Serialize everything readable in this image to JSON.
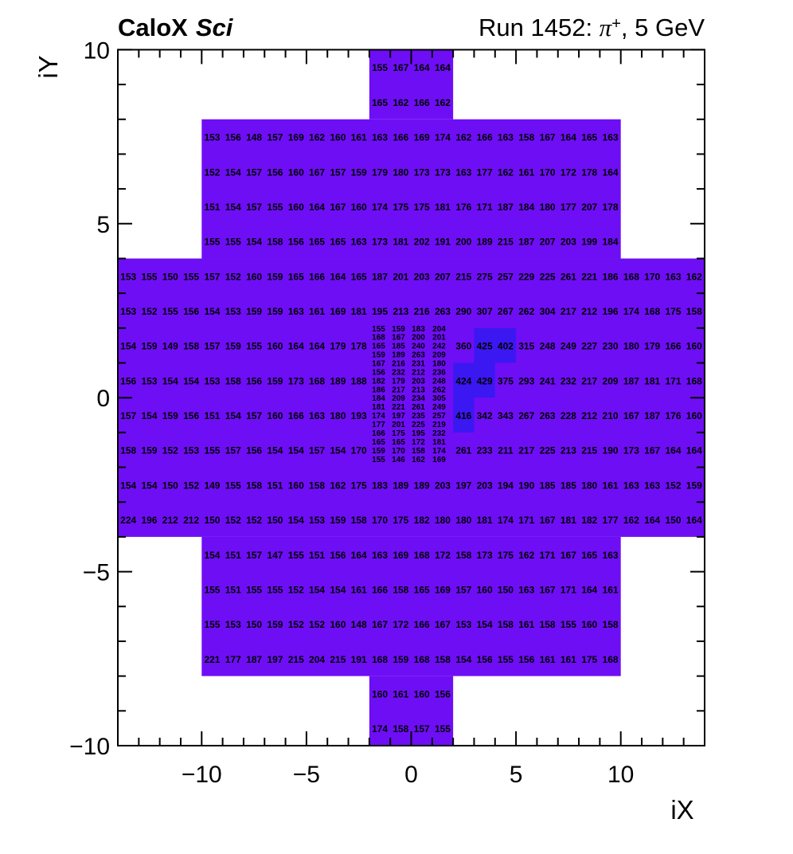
{
  "header": {
    "experiment": "CaloX",
    "detector": "Sci",
    "run_prefix": "Run 1452: ",
    "particle": "π",
    "particle_charge": "+",
    "run_suffix": ", 5 GeV"
  },
  "chart_data": {
    "type": "heatmap",
    "title_left": "CaloX Sci",
    "title_right": "Run 1452: π+, 5 GeV",
    "xlabel": "iX",
    "ylabel": "iY",
    "x_range": [
      -14,
      14
    ],
    "y_range": [
      -10,
      10
    ],
    "x_ticks": [
      -10,
      -5,
      0,
      5,
      10
    ],
    "y_ticks": [
      -10,
      -5,
      0,
      5,
      10
    ],
    "x_tick_labels": [
      "−10",
      "−5",
      "0",
      "5",
      "10"
    ],
    "y_tick_labels": [
      "−10",
      "−5",
      "0",
      "5",
      "10"
    ],
    "minor_tick_step": 1,
    "grid": false,
    "legend": "none",
    "colors": {
      "cell_low": "#6E0EF5",
      "cell_high": "#3B18F2",
      "high_threshold": 400,
      "frame": "#000000",
      "text": "#000000",
      "background": "#ffffff"
    },
    "detector_regions": [
      {
        "y_min": 8,
        "y_max": 10,
        "x_min": -2,
        "x_max": 2
      },
      {
        "y_min": 4,
        "y_max": 8,
        "x_min": -10,
        "x_max": 10
      },
      {
        "y_min": -4,
        "y_max": 4,
        "x_min": -14,
        "x_max": 14
      },
      {
        "y_min": -8,
        "y_max": -4,
        "x_min": -10,
        "x_max": 10
      },
      {
        "y_min": -10,
        "y_max": -8,
        "x_min": -2,
        "x_max": 2
      }
    ],
    "high_cells": [
      {
        "ix": 3.5,
        "iy": 1.5,
        "value": 425
      },
      {
        "ix": 4.5,
        "iy": 1.5,
        "value": 402
      },
      {
        "ix": 2.5,
        "iy": 0.5,
        "value": 424
      },
      {
        "ix": 3.5,
        "iy": 0.5,
        "value": 429
      },
      {
        "ix": 2.5,
        "iy": -0.5,
        "value": 416
      }
    ],
    "coarse_rows": [
      {
        "iy": 9.5,
        "ix_start": -2,
        "values": [
          155,
          167,
          164,
          164
        ]
      },
      {
        "iy": 8.5,
        "ix_start": -2,
        "values": [
          165,
          162,
          166,
          162
        ]
      },
      {
        "iy": 7.5,
        "ix_start": -10,
        "values": [
          153,
          156,
          148,
          157,
          169,
          162,
          160,
          161,
          163,
          166,
          169,
          174,
          162,
          166,
          163,
          158,
          167,
          164,
          165,
          163
        ]
      },
      {
        "iy": 6.5,
        "ix_start": -10,
        "values": [
          152,
          154,
          157,
          156,
          160,
          167,
          157,
          159,
          179,
          180,
          173,
          173,
          163,
          177,
          162,
          161,
          170,
          172,
          178,
          164
        ]
      },
      {
        "iy": 5.5,
        "ix_start": -10,
        "values": [
          151,
          154,
          157,
          155,
          160,
          164,
          167,
          160,
          174,
          175,
          175,
          181,
          176,
          171,
          187,
          184,
          180,
          177,
          207,
          178
        ]
      },
      {
        "iy": 4.5,
        "ix_start": -10,
        "values": [
          155,
          155,
          154,
          158,
          156,
          165,
          165,
          163,
          173,
          181,
          202,
          191,
          200,
          189,
          215,
          187,
          207,
          203,
          199,
          184
        ]
      },
      {
        "iy": 3.5,
        "ix_start": -14,
        "values": [
          153,
          155,
          150,
          155,
          157,
          152,
          160,
          159,
          165,
          166,
          164,
          165,
          187,
          201,
          203,
          207,
          215,
          275,
          257,
          229,
          225,
          261,
          221,
          186,
          168,
          170,
          163,
          162
        ]
      },
      {
        "iy": 2.5,
        "ix_start": -14,
        "values": [
          153,
          152,
          155,
          156,
          154,
          153,
          159,
          159,
          163,
          161,
          169,
          181,
          195,
          213,
          216,
          263,
          290,
          307,
          267,
          262,
          304,
          217,
          212,
          196,
          174,
          168,
          175,
          158
        ]
      },
      {
        "iy": 1.5,
        "ix_start": -14,
        "values": [
          154,
          159,
          149,
          158,
          157,
          159,
          155,
          160,
          164,
          164,
          179,
          178
        ]
      },
      {
        "iy": 1.5,
        "ix_start": 2,
        "values": [
          360,
          425,
          402,
          315,
          248,
          249,
          227,
          230,
          180,
          179,
          166,
          160
        ]
      },
      {
        "iy": 0.5,
        "ix_start": -14,
        "values": [
          156,
          153,
          154,
          154,
          153,
          158,
          156,
          159,
          173,
          168,
          189,
          188
        ]
      },
      {
        "iy": 0.5,
        "ix_start": 2,
        "values": [
          424,
          429,
          375,
          293,
          241,
          232,
          217,
          209,
          187,
          181,
          171,
          168
        ]
      },
      {
        "iy": -0.5,
        "ix_start": -14,
        "values": [
          157,
          154,
          159,
          156,
          151,
          154,
          157,
          160,
          166,
          163,
          180,
          193
        ]
      },
      {
        "iy": -0.5,
        "ix_start": 2,
        "values": [
          416,
          342,
          343,
          267,
          263,
          228,
          212,
          210,
          167,
          187,
          176,
          160
        ]
      },
      {
        "iy": -1.5,
        "ix_start": -14,
        "values": [
          158,
          159,
          152,
          153,
          155,
          157,
          156,
          154,
          154,
          157,
          154,
          170
        ]
      },
      {
        "iy": -1.5,
        "ix_start": 2,
        "values": [
          261,
          233,
          211,
          217,
          225,
          213,
          215,
          190,
          173,
          167,
          164,
          164
        ]
      },
      {
        "iy": -2.5,
        "ix_start": -14,
        "values": [
          154,
          154,
          150,
          152,
          149,
          155,
          158,
          151,
          160,
          158,
          162,
          175,
          183,
          189,
          189,
          203,
          197,
          203,
          194,
          190,
          185,
          185,
          180,
          161,
          163,
          163,
          152,
          159
        ]
      },
      {
        "iy": -3.5,
        "ix_start": -14,
        "values": [
          224,
          196,
          212,
          212,
          150,
          152,
          152,
          150,
          154,
          153,
          159,
          158,
          170,
          175,
          182,
          180,
          180,
          181,
          174,
          171,
          167,
          181,
          182,
          177,
          162,
          164,
          150,
          164
        ]
      },
      {
        "iy": -4.5,
        "ix_start": -10,
        "values": [
          154,
          151,
          157,
          147,
          155,
          151,
          156,
          164,
          163,
          169,
          168,
          172,
          158,
          173,
          175,
          162,
          171,
          167,
          165,
          163
        ]
      },
      {
        "iy": -5.5,
        "ix_start": -10,
        "values": [
          155,
          151,
          155,
          155,
          152,
          154,
          154,
          161,
          166,
          158,
          165,
          169,
          157,
          160,
          150,
          163,
          167,
          171,
          164,
          161
        ]
      },
      {
        "iy": -6.5,
        "ix_start": -10,
        "values": [
          155,
          153,
          150,
          159,
          152,
          152,
          160,
          148,
          167,
          172,
          166,
          167,
          153,
          154,
          158,
          161,
          158,
          155,
          160,
          158
        ]
      },
      {
        "iy": -7.5,
        "ix_start": -10,
        "values": [
          221,
          177,
          187,
          197,
          215,
          204,
          215,
          191,
          168,
          159,
          168,
          158,
          154,
          156,
          155,
          156,
          161,
          161,
          175,
          168
        ]
      },
      {
        "iy": -8.5,
        "ix_start": -2,
        "values": [
          160,
          161,
          160,
          156
        ]
      },
      {
        "iy": -9.5,
        "ix_start": -2,
        "values": [
          174,
          158,
          157,
          155
        ]
      }
    ],
    "fine_block": {
      "x_min": -2,
      "x_max": 2,
      "y_min": -2,
      "y_max": 2,
      "rows": [
        [
          155,
          159,
          183,
          204
        ],
        [
          168,
          167,
          200,
          201
        ],
        [
          165,
          185,
          240,
          242
        ],
        [
          159,
          189,
          263,
          209
        ],
        [
          167,
          216,
          231,
          180
        ],
        [
          156,
          232,
          212,
          236
        ],
        [
          182,
          179,
          203,
          248
        ],
        [
          186,
          217,
          213,
          262
        ],
        [
          184,
          209,
          234,
          305
        ],
        [
          181,
          221,
          261,
          249
        ],
        [
          174,
          197,
          235,
          257
        ],
        [
          177,
          201,
          225,
          219
        ],
        [
          166,
          175,
          195,
          232
        ],
        [
          165,
          165,
          172,
          181
        ],
        [
          159,
          170,
          158,
          174
        ],
        [
          155,
          146,
          162,
          169
        ]
      ]
    }
  }
}
